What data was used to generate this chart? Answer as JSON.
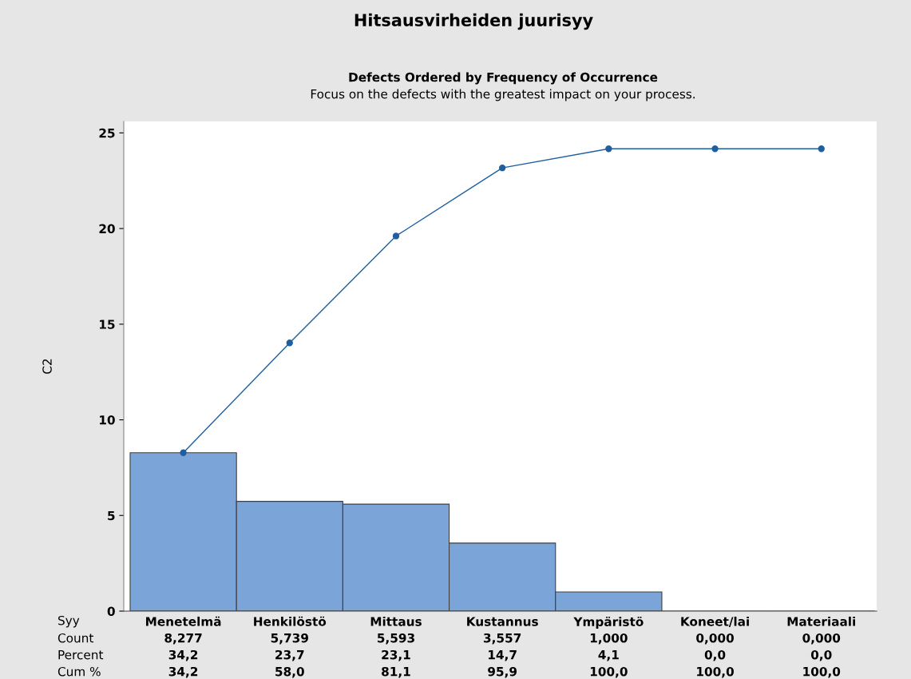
{
  "chart_data": {
    "type": "bar",
    "title": "Hitsausvirheiden juurisyy",
    "subtitle": "Defects Ordered by Frequency of Occurrence\nFocus on the defects with the greatest impact on your process.",
    "ylabel": "C2",
    "categories": [
      "Menetelmä",
      "Henkilöstö",
      "Mittaus",
      "Kustannus",
      "Ympäristö",
      "Koneet/lai",
      "Materiaali"
    ],
    "series": [
      {
        "color": "#7ba5d8",
        "values": [
          8.277,
          5.739,
          5.593,
          3.557,
          1.0,
          0.0,
          0.0
        ],
        "value_labels": [
          "8,277",
          "5,739",
          "5,593",
          "3,557",
          "1,000",
          "0,000",
          "0,000"
        ]
      },
      {
        "type": "line",
        "color": "#1f5fa0",
        "marker": "circle",
        "values": [
          8.28,
          14.02,
          19.61,
          23.17,
          24.17,
          24.17,
          24.17
        ]
      }
    ],
    "annotations": [
      "Syy",
      "Count",
      "Percent",
      "Cum %",
      "34,2",
      "23,7",
      "23,1",
      "14,7",
      "4,1",
      "0,0",
      "0,0",
      "34,2",
      "58,0",
      "81,1",
      "95,9",
      "100,0",
      "100,0",
      "100,0"
    ],
    "ylim": [
      0,
      25.6
    ],
    "yticks": [
      0,
      5,
      10,
      15,
      20,
      25
    ],
    "grid": false,
    "legend": false
  }
}
